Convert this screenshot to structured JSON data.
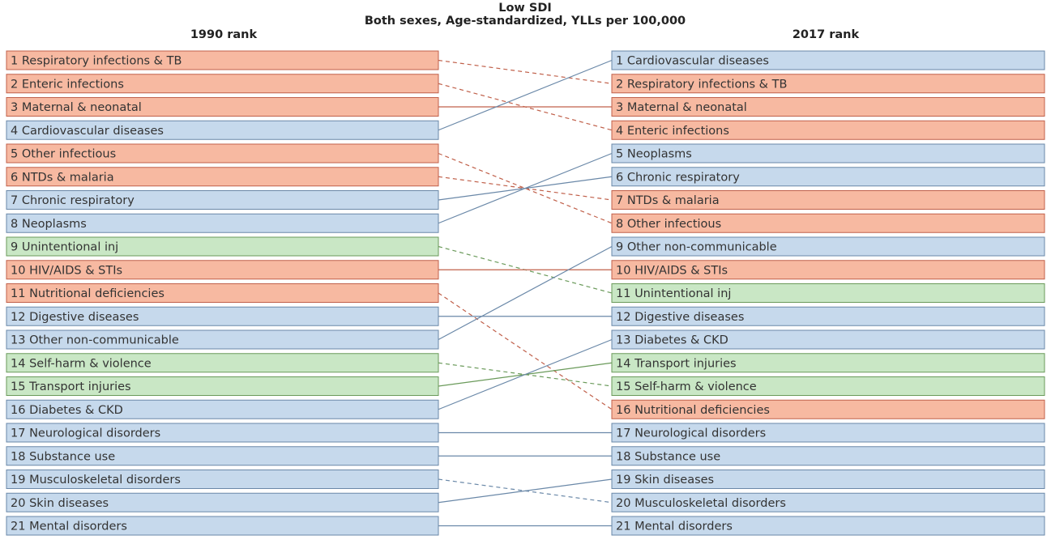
{
  "title": "Low SDI",
  "subtitle": "Both sexes, Age-standardized, YLLs per 100,000",
  "left": {
    "header": "1990 rank",
    "items": [
      {
        "rank": 1,
        "name": "Respiratory infections & TB",
        "fill": "#f7b9a1",
        "stroke": "#c0604a"
      },
      {
        "rank": 2,
        "name": "Enteric infections",
        "fill": "#f7b9a1",
        "stroke": "#c0604a"
      },
      {
        "rank": 3,
        "name": "Maternal & neonatal",
        "fill": "#f7b9a1",
        "stroke": "#c0604a"
      },
      {
        "rank": 4,
        "name": "Cardiovascular diseases",
        "fill": "#c6d9ec",
        "stroke": "#6a88a8"
      },
      {
        "rank": 5,
        "name": "Other infectious",
        "fill": "#f7b9a1",
        "stroke": "#c0604a"
      },
      {
        "rank": 6,
        "name": "NTDs & malaria",
        "fill": "#f7b9a1",
        "stroke": "#c0604a"
      },
      {
        "rank": 7,
        "name": "Chronic respiratory",
        "fill": "#c6d9ec",
        "stroke": "#6a88a8"
      },
      {
        "rank": 8,
        "name": "Neoplasms",
        "fill": "#c6d9ec",
        "stroke": "#6a88a8"
      },
      {
        "rank": 9,
        "name": "Unintentional inj",
        "fill": "#c9e7c5",
        "stroke": "#6a9a5a"
      },
      {
        "rank": 10,
        "name": "HIV/AIDS & STIs",
        "fill": "#f7b9a1",
        "stroke": "#c0604a"
      },
      {
        "rank": 11,
        "name": "Nutritional deficiencies",
        "fill": "#f7b9a1",
        "stroke": "#c0604a"
      },
      {
        "rank": 12,
        "name": "Digestive diseases",
        "fill": "#c6d9ec",
        "stroke": "#6a88a8"
      },
      {
        "rank": 13,
        "name": "Other non-communicable",
        "fill": "#c6d9ec",
        "stroke": "#6a88a8"
      },
      {
        "rank": 14,
        "name": "Self-harm & violence",
        "fill": "#c9e7c5",
        "stroke": "#6a9a5a"
      },
      {
        "rank": 15,
        "name": "Transport injuries",
        "fill": "#c9e7c5",
        "stroke": "#6a9a5a"
      },
      {
        "rank": 16,
        "name": "Diabetes & CKD",
        "fill": "#c6d9ec",
        "stroke": "#6a88a8"
      },
      {
        "rank": 17,
        "name": "Neurological disorders",
        "fill": "#c6d9ec",
        "stroke": "#6a88a8"
      },
      {
        "rank": 18,
        "name": "Substance use",
        "fill": "#c6d9ec",
        "stroke": "#6a88a8"
      },
      {
        "rank": 19,
        "name": "Musculoskeletal disorders",
        "fill": "#c6d9ec",
        "stroke": "#6a88a8"
      },
      {
        "rank": 20,
        "name": "Skin diseases",
        "fill": "#c6d9ec",
        "stroke": "#6a88a8"
      },
      {
        "rank": 21,
        "name": "Mental disorders",
        "fill": "#c6d9ec",
        "stroke": "#6a88a8"
      }
    ]
  },
  "right": {
    "header": "2017 rank",
    "items": [
      {
        "rank": 1,
        "name": "Cardiovascular diseases",
        "fill": "#c6d9ec",
        "stroke": "#6a88a8"
      },
      {
        "rank": 2,
        "name": "Respiratory infections & TB",
        "fill": "#f7b9a1",
        "stroke": "#c0604a"
      },
      {
        "rank": 3,
        "name": "Maternal & neonatal",
        "fill": "#f7b9a1",
        "stroke": "#c0604a"
      },
      {
        "rank": 4,
        "name": "Enteric infections",
        "fill": "#f7b9a1",
        "stroke": "#c0604a"
      },
      {
        "rank": 5,
        "name": "Neoplasms",
        "fill": "#c6d9ec",
        "stroke": "#6a88a8"
      },
      {
        "rank": 6,
        "name": "Chronic respiratory",
        "fill": "#c6d9ec",
        "stroke": "#6a88a8"
      },
      {
        "rank": 7,
        "name": "NTDs & malaria",
        "fill": "#f7b9a1",
        "stroke": "#c0604a"
      },
      {
        "rank": 8,
        "name": "Other infectious",
        "fill": "#f7b9a1",
        "stroke": "#c0604a"
      },
      {
        "rank": 9,
        "name": "Other non-communicable",
        "fill": "#c6d9ec",
        "stroke": "#6a88a8"
      },
      {
        "rank": 10,
        "name": "HIV/AIDS & STIs",
        "fill": "#f7b9a1",
        "stroke": "#c0604a"
      },
      {
        "rank": 11,
        "name": "Unintentional inj",
        "fill": "#c9e7c5",
        "stroke": "#6a9a5a"
      },
      {
        "rank": 12,
        "name": "Digestive diseases",
        "fill": "#c6d9ec",
        "stroke": "#6a88a8"
      },
      {
        "rank": 13,
        "name": "Diabetes & CKD",
        "fill": "#c6d9ec",
        "stroke": "#6a88a8"
      },
      {
        "rank": 14,
        "name": "Transport injuries",
        "fill": "#c9e7c5",
        "stroke": "#6a9a5a"
      },
      {
        "rank": 15,
        "name": "Self-harm & violence",
        "fill": "#c9e7c5",
        "stroke": "#6a9a5a"
      },
      {
        "rank": 16,
        "name": "Nutritional deficiencies",
        "fill": "#f7b9a1",
        "stroke": "#c0604a"
      },
      {
        "rank": 17,
        "name": "Neurological disorders",
        "fill": "#c6d9ec",
        "stroke": "#6a88a8"
      },
      {
        "rank": 18,
        "name": "Substance use",
        "fill": "#c6d9ec",
        "stroke": "#6a88a8"
      },
      {
        "rank": 19,
        "name": "Skin diseases",
        "fill": "#c6d9ec",
        "stroke": "#6a88a8"
      },
      {
        "rank": 20,
        "name": "Musculoskeletal disorders",
        "fill": "#c6d9ec",
        "stroke": "#6a88a8"
      },
      {
        "rank": 21,
        "name": "Mental disorders",
        "fill": "#c6d9ec",
        "stroke": "#6a88a8"
      }
    ]
  }
}
